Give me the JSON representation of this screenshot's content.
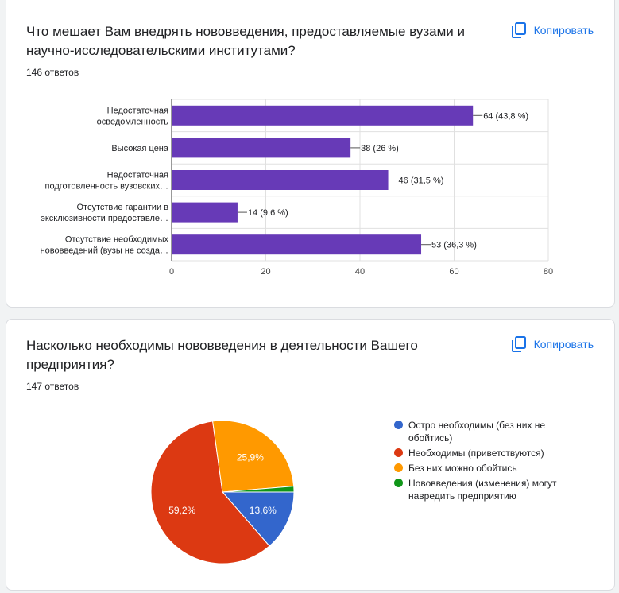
{
  "copy_label": "Копировать",
  "q1": {
    "title": "Что мешает Вам внедрять нововведения, предоставляемые вузами и научно-исследовательскими институтами?",
    "count": "146 ответов"
  },
  "q2": {
    "title": "Насколько необходимы нововведения в деятельности Вашего предприятия?",
    "count": "147 ответов"
  },
  "chart_data": [
    {
      "type": "bar",
      "orientation": "horizontal",
      "categories": [
        [
          "Недостаточная",
          "осведомленность"
        ],
        [
          "Высокая цена"
        ],
        [
          "Недостаточная",
          "подготовленность вузовских…"
        ],
        [
          "Отсутствие гарантии в",
          "эксклюзивности предоставле…"
        ],
        [
          "Отсутствие необходимых",
          "нововведений (вузы не созда…"
        ]
      ],
      "values": [
        64,
        38,
        46,
        14,
        53
      ],
      "labels": [
        "64 (43,8 %)",
        "38 (26 %)",
        "46 (31,5 %)",
        "14 (9,6 %)",
        "53 (36,3 %)"
      ],
      "xlim": [
        0,
        80
      ],
      "xticks": [
        0,
        20,
        40,
        60,
        80
      ],
      "color": "#673ab7",
      "grid": true
    },
    {
      "type": "pie",
      "slices": [
        {
          "name": "Остро необходимы (без них не обойтись)",
          "value": 13.6,
          "label": "13,6%",
          "color": "#3366cc"
        },
        {
          "name": "Необходимы (приветствуются)",
          "value": 59.2,
          "label": "59,2%",
          "color": "#dc3912"
        },
        {
          "name": "Без них можно обойтись",
          "value": 25.9,
          "label": "25,9%",
          "color": "#ff9900"
        },
        {
          "name": "Нововведения (изменения) могут навредить предприятию",
          "value": 1.3,
          "label": "",
          "color": "#109618"
        }
      ],
      "legend_position": "right"
    }
  ]
}
